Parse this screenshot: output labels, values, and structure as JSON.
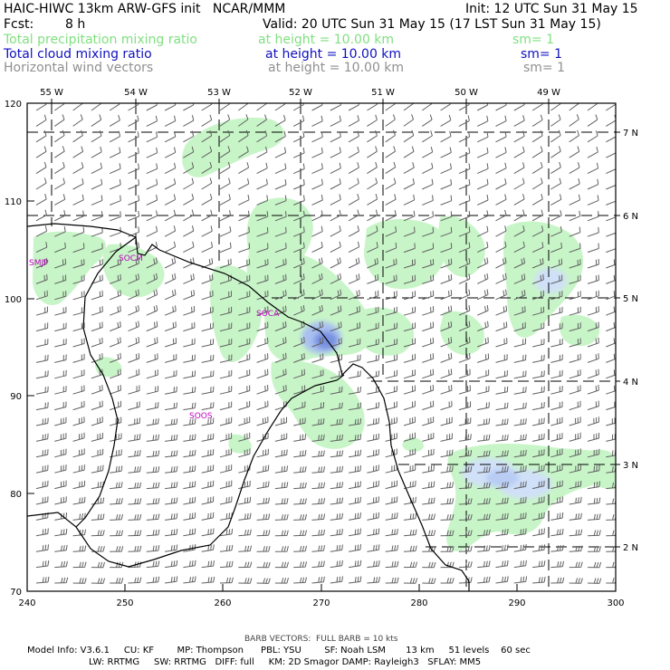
{
  "header": {
    "title": "HAIC-HIWC 13km ARW-GFS init   NCAR/MMM",
    "init": "Init: 12 UTC Sun 31 May 15",
    "fcst_label": "Fcst:",
    "fcst_value": "8 h",
    "valid": "Valid: 20 UTC Sun 31 May 15 (17 LST Sun 31 May 15)",
    "fields": [
      {
        "name": "Total precipitation mixing ratio",
        "height": "at height = 10.00 km",
        "sm": "sm= 1",
        "color": "#80e080"
      },
      {
        "name": "Total cloud mixing ratio",
        "height": "at height = 10.00 km",
        "sm": "sm= 1",
        "color": "#1010c0"
      },
      {
        "name": "Horizontal wind vectors",
        "height": "at height = 10.00 km",
        "sm": "sm= 1",
        "color": "#909090"
      }
    ]
  },
  "map": {
    "x_ticks": [
      "240",
      "250",
      "260",
      "270",
      "280",
      "290",
      "300"
    ],
    "y_ticks": [
      "70",
      "80",
      "90",
      "100",
      "110",
      "120"
    ],
    "lon_labels": [
      "55 W",
      "54 W",
      "53 W",
      "52 W",
      "51 W",
      "50 W",
      "49 W"
    ],
    "lat_labels": [
      "7 N",
      "6 N",
      "5 N",
      "4 N",
      "3 N",
      "2 N"
    ],
    "stations": [
      "SMJP",
      "SOCM",
      "SOCA",
      "SOOS"
    ],
    "colors": {
      "precip": "#c8f5c8",
      "cloud_light": "#d0e0f8",
      "cloud_mid": "#a8c0f0",
      "cloud_dark": "#7890e0",
      "barb": "#606060",
      "coast": "#000000",
      "station": "#c000c0"
    }
  },
  "footer": {
    "barb_note": "BARB VECTORS:  FULL BARB = 10 kts",
    "model_line1": "Model Info: V3.6.1     CU: KF        MP: Thompson      PBL: YSU        SF: Noah LSM       13 km     51 levels    60 sec",
    "model_line2": "LW: RRTMG     SW: RRTMG   DIFF: full     KM: 2D Smagor DAMP: Rayleigh3   SFLAY: MM5"
  }
}
